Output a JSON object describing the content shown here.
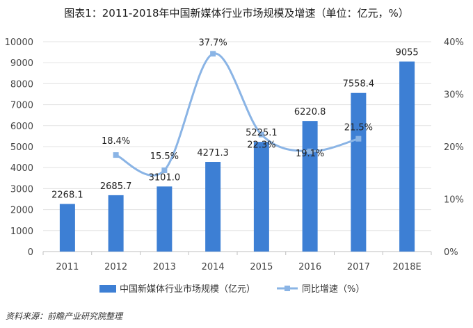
{
  "title": "图表1：2011-2018年中国新媒体行业市场规模及增速（单位：亿元，%）",
  "source": "资料来源：前瞻产业研究院整理",
  "chart_data": {
    "type": "bar",
    "categories": [
      "2011",
      "2012",
      "2013",
      "2014",
      "2015",
      "2016",
      "2017",
      "2018E"
    ],
    "series": [
      {
        "name": "中国新媒体行业市场规模（亿元）",
        "type": "bar",
        "axis": "left",
        "values": [
          2268.1,
          2685.7,
          3101.0,
          4271.3,
          5225.1,
          6220.8,
          7558.4,
          9055
        ],
        "labels": [
          "2268.1",
          "2685.7",
          "3101.0",
          "4271.3",
          "5225.1",
          "6220.8",
          "7558.4",
          "9055"
        ]
      },
      {
        "name": "同比增速（%）",
        "type": "line",
        "axis": "right",
        "values": [
          null,
          18.4,
          15.5,
          37.7,
          22.3,
          19.1,
          21.5,
          null
        ],
        "labels": [
          null,
          "18.4%",
          "15.5%",
          "37.7%",
          "22.3%",
          "19.1%",
          "21.5%",
          null
        ]
      }
    ],
    "yleft": {
      "lim": [
        0,
        10000
      ],
      "ticks": [
        "0",
        "1000",
        "2000",
        "3000",
        "4000",
        "5000",
        "6000",
        "7000",
        "8000",
        "9000",
        "10000"
      ]
    },
    "yright": {
      "lim": [
        0,
        40
      ],
      "ticks": [
        "0%",
        "10%",
        "20%",
        "30%",
        "40%"
      ]
    },
    "legend": "bottom",
    "colors": {
      "bar": "#3d7fd4",
      "line": "#8ab4e5"
    }
  }
}
